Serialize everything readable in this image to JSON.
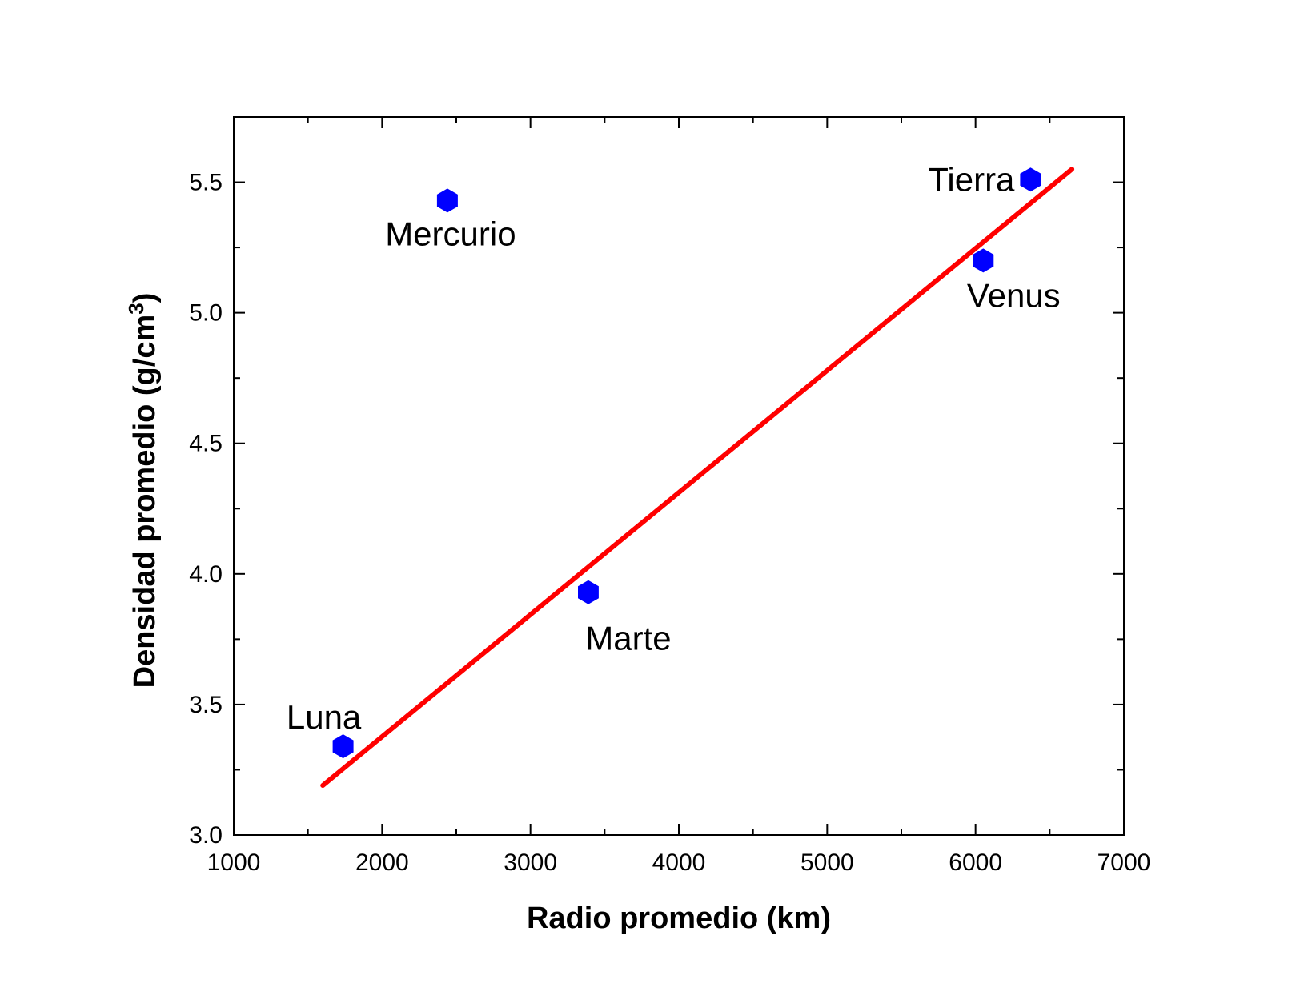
{
  "chart_data": {
    "type": "scatter",
    "title": "",
    "xlabel": "Radio promedio   (km)",
    "ylabel_main": "Densidad promedio  (g/cm",
    "ylabel_sup": "3",
    "ylabel_close": ")",
    "xlim": [
      1000,
      7000
    ],
    "ylim": [
      3.0,
      5.75
    ],
    "xticks": [
      1000,
      2000,
      3000,
      4000,
      5000,
      6000,
      7000
    ],
    "xtick_labels": [
      "1000",
      "2000",
      "3000",
      "4000",
      "5000",
      "6000",
      "7000"
    ],
    "yticks": [
      3.0,
      3.5,
      4.0,
      4.5,
      5.0,
      5.5
    ],
    "ytick_labels": [
      "3.0",
      "3.5",
      "4.0",
      "4.5",
      "5.0",
      "5.5"
    ],
    "grid": false,
    "points": [
      {
        "label": "Luna",
        "x": 1737,
        "y": 3.34
      },
      {
        "label": "Mercurio",
        "x": 2440,
        "y": 5.43
      },
      {
        "label": "Marte",
        "x": 3390,
        "y": 3.93
      },
      {
        "label": "Venus",
        "x": 6052,
        "y": 5.2
      },
      {
        "label": "Tierra",
        "x": 6371,
        "y": 5.51
      }
    ],
    "fit_line": {
      "x": [
        1600,
        6650
      ],
      "y": [
        3.19,
        5.55
      ]
    },
    "colors": {
      "points": "#0000ff",
      "fit_line": "#ff0000",
      "axes": "#000000"
    }
  }
}
